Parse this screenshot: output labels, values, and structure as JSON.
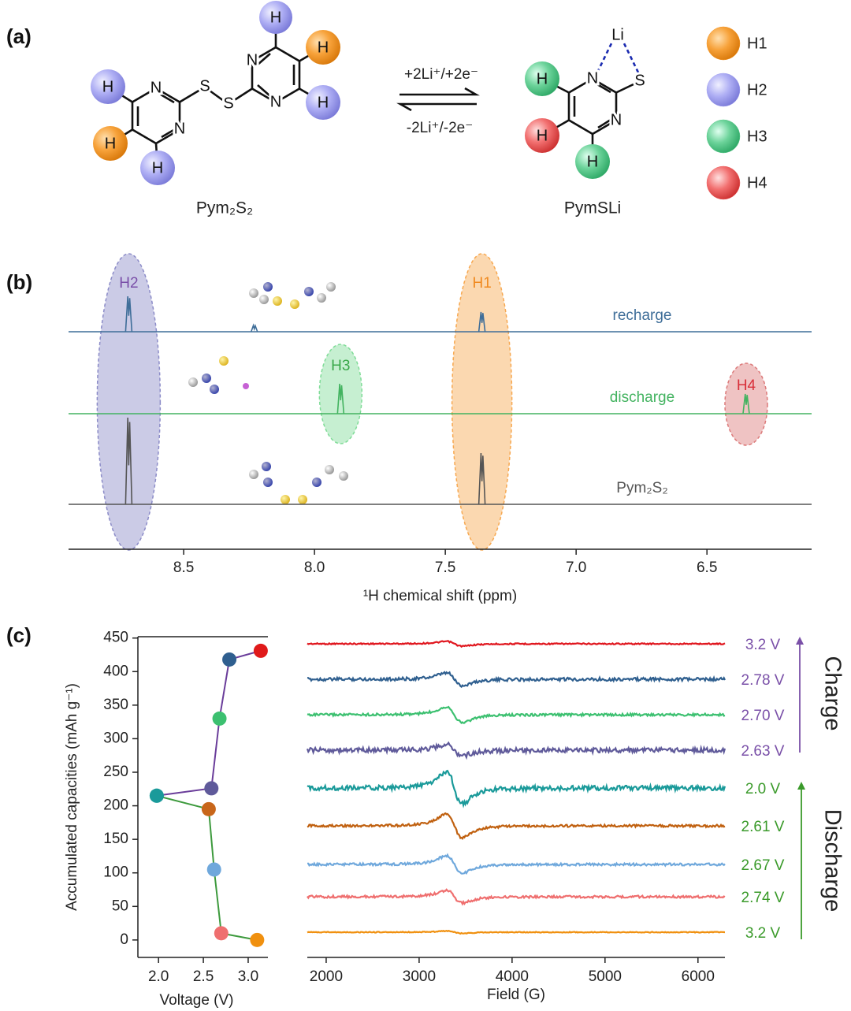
{
  "panel_labels": [
    "(a)",
    "(b)",
    "(c)"
  ],
  "scheme": {
    "reactant": {
      "name": "Pym₂S₂",
      "atoms": [
        "N",
        "N",
        "S",
        "S",
        "N",
        "N",
        "H",
        "H",
        "H",
        "H",
        "H",
        "H"
      ]
    },
    "forward": "+2Li⁺/+2e⁻",
    "reverse": "-2Li⁺/-2e⁻",
    "product": {
      "name": "PymSLi",
      "atoms": [
        "Li",
        "N",
        "S",
        "N",
        "H",
        "H",
        "H"
      ]
    },
    "legend": [
      {
        "label": "H1",
        "color": "#f59a2c"
      },
      {
        "label": "H2",
        "color": "#a6a6f2"
      },
      {
        "label": "H3",
        "color": "#62cc90"
      },
      {
        "label": "H4",
        "color": "#ef6464"
      }
    ]
  },
  "chart_data": [
    {
      "type": "nmr",
      "xlabel": "¹H chemical shift (ppm)",
      "xlim": [
        8.94,
        6.1
      ],
      "xticks": [
        8.5,
        {
          "value": 8,
          "label": "8.0"
        },
        7.5,
        {
          "value": 7,
          "label": "7.0"
        },
        6.5
      ],
      "ylim": [
        0,
        120
      ],
      "series": [
        {
          "name": "recharge",
          "color": "#3f6e99",
          "peaks": [
            8.71,
            8.23,
            7.36
          ],
          "intensities": [
            45,
            8,
            25
          ]
        },
        {
          "name": "discharge",
          "color": "#43b360",
          "peaks": [
            7.9,
            6.35
          ],
          "intensities": [
            38,
            25
          ]
        },
        {
          "name": "Pym₂S₂",
          "color": "#555555",
          "peaks": [
            8.71,
            7.36
          ],
          "intensities": [
            110,
            65
          ]
        }
      ],
      "annotations": [
        {
          "text": "H2",
          "x": 8.71,
          "color": "#7a4fa8",
          "fill": "#8c8cc8"
        },
        {
          "text": "H1",
          "x": 7.36,
          "color": "#f08a20",
          "fill": "#f7a850"
        },
        {
          "text": "H3",
          "x": 7.9,
          "color": "#3aa84a",
          "fill": "#80dc98"
        },
        {
          "text": "H4",
          "x": 6.35,
          "color": "#d8303a",
          "fill": "#dc7a7a"
        }
      ]
    },
    {
      "type": "line",
      "xlabel": "Voltage (V)",
      "ylabel": "Accumulated capacities (mAh g⁻¹)",
      "xlim": [
        1.77,
        3.22
      ],
      "xticks": [
        {
          "value": 2,
          "label": "2.0"
        },
        2.5,
        {
          "value": 3,
          "label": "3.0"
        }
      ],
      "ylim": [
        -26,
        452
      ],
      "yticks": [
        0,
        50,
        100,
        150,
        200,
        250,
        300,
        350,
        400,
        450
      ],
      "series": [
        {
          "color": "#3d9a3d",
          "x": [
            3.1,
            2.7,
            2.62,
            2.56,
            1.98
          ],
          "values": [
            0,
            10,
            105,
            195,
            215
          ],
          "point_colors": [
            "#f0900f",
            "#ef6f6f",
            "#6fa8dc",
            "#c8661a",
            "#1a9a9a"
          ]
        },
        {
          "color": "#6a3d9a",
          "x": [
            1.98,
            2.59,
            2.68,
            2.79,
            3.14
          ],
          "values": [
            215,
            226,
            330,
            418,
            431
          ],
          "point_colors": [
            "#1a9a9a",
            "#5f5a9a",
            "#3cc070",
            "#2f5f8f",
            "#e01a1a"
          ]
        }
      ]
    },
    {
      "type": "epr",
      "xlabel": "Field (G)",
      "xlim": [
        1797,
        6290
      ],
      "xticks": [
        2000,
        3000,
        4000,
        5000,
        6000
      ],
      "signal_center": 3380,
      "groups": [
        {
          "label": "Charge",
          "color": "#7a50a8",
          "series": [
            {
              "name": "3.2 V",
              "color": "#e0161e",
              "amplitude": 3,
              "noise": 0.8
            },
            {
              "name": "2.78 V",
              "color": "#2f5f8f",
              "amplitude": 8,
              "noise": 2
            },
            {
              "name": "2.70 V",
              "color": "#3cc070",
              "amplitude": 10,
              "noise": 1.5
            },
            {
              "name": "2.63 V",
              "color": "#5f5a9a",
              "amplitude": 7,
              "noise": 3
            }
          ]
        },
        {
          "label": "Discharge",
          "color": "#3a9a2a",
          "series": [
            {
              "name": "2.0 V",
              "color": "#1a9a9a",
              "amplitude": 20,
              "noise": 3
            },
            {
              "name": "2.61 V",
              "color": "#c0600f",
              "amplitude": 15,
              "noise": 1.5
            },
            {
              "name": "2.67 V",
              "color": "#6fa8dc",
              "amplitude": 11,
              "noise": 1.5
            },
            {
              "name": "2.74 V",
              "color": "#ef6f6f",
              "amplitude": 8,
              "noise": 1.5
            },
            {
              "name": "3.2 V",
              "color": "#f0900f",
              "amplitude": 1.5,
              "noise": 0.5
            }
          ]
        }
      ]
    }
  ]
}
